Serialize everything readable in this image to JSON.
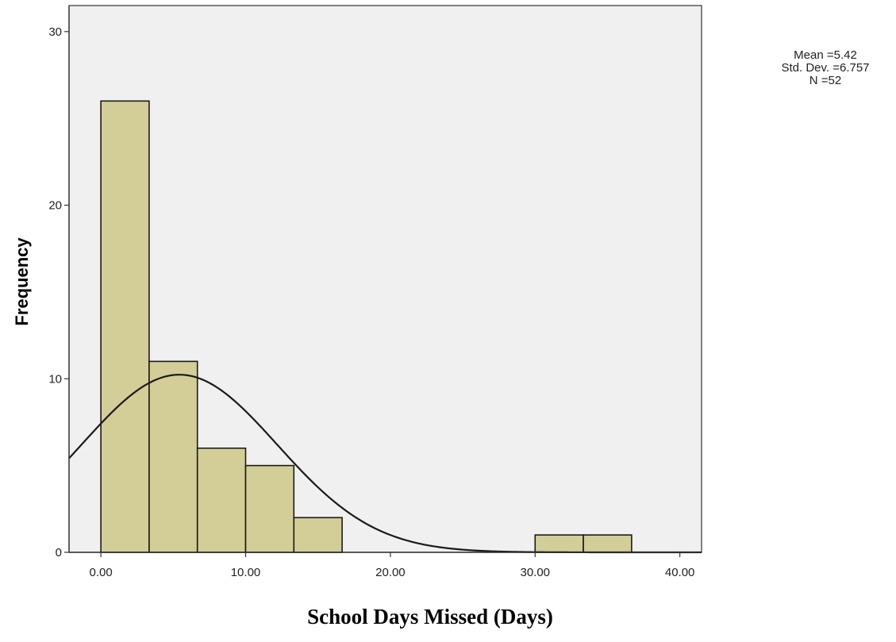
{
  "chart_data": {
    "type": "bar",
    "subtype": "histogram",
    "xlabel": "School Days Missed (Days)",
    "ylabel": "Frequency",
    "xlim": [
      -2.2,
      41.5
    ],
    "ylim": [
      0,
      31.5
    ],
    "x_ticks": [
      0,
      10,
      20,
      30,
      40
    ],
    "x_tick_labels": [
      "0.00",
      "10.00",
      "20.00",
      "30.00",
      "40.00"
    ],
    "y_ticks": [
      0,
      10,
      20,
      30
    ],
    "y_tick_labels": [
      "0",
      "10",
      "20",
      "30"
    ],
    "bin_width": 3.333,
    "bins": [
      {
        "start": 0.0,
        "end": 3.333,
        "count": 26
      },
      {
        "start": 3.333,
        "end": 6.667,
        "count": 11
      },
      {
        "start": 6.667,
        "end": 10.0,
        "count": 6
      },
      {
        "start": 10.0,
        "end": 13.333,
        "count": 5
      },
      {
        "start": 13.333,
        "end": 16.667,
        "count": 2
      },
      {
        "start": 16.667,
        "end": 20.0,
        "count": 0
      },
      {
        "start": 20.0,
        "end": 23.333,
        "count": 0
      },
      {
        "start": 23.333,
        "end": 26.667,
        "count": 0
      },
      {
        "start": 26.667,
        "end": 30.0,
        "count": 0
      },
      {
        "start": 30.0,
        "end": 33.333,
        "count": 1
      },
      {
        "start": 33.333,
        "end": 36.667,
        "count": 1
      }
    ],
    "normal_curve": {
      "mean": 5.42,
      "std_dev": 6.757,
      "n": 52
    },
    "stats_lines": [
      "Mean =5.42",
      "Std. Dev. =6.757",
      "N =52"
    ],
    "grid": false,
    "colors": {
      "plot_background": "#f0f0f0",
      "bar_fill": "#d3ce97",
      "bar_stroke": "#1a1a1a",
      "curve": "#1a1a1a",
      "axis": "#333333"
    }
  }
}
